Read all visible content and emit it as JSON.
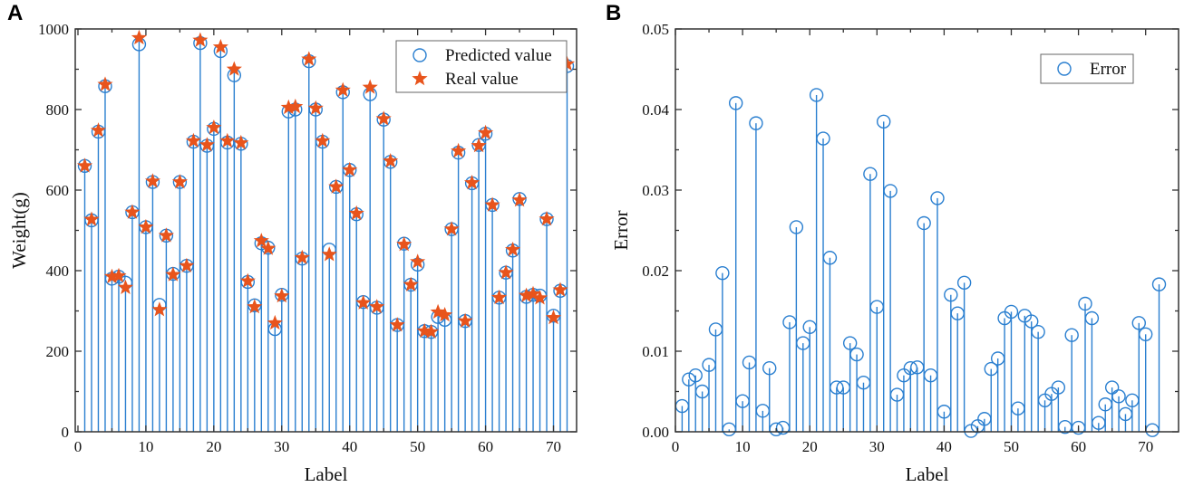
{
  "colors": {
    "stem": "#2a7fd0",
    "star": "#e8541c",
    "axis": "#333333"
  },
  "chart_data": [
    {
      "panel_label": "A",
      "type": "scatter",
      "subtype": "stem",
      "xlabel": "Label",
      "ylabel": "Weight(g)",
      "xlim": [
        -0.4,
        73.4
      ],
      "ylim": [
        0,
        1000
      ],
      "xticks": [
        0,
        10,
        20,
        30,
        40,
        50,
        60,
        70
      ],
      "yticks": [
        0,
        200,
        400,
        600,
        800,
        1000
      ],
      "legend_position": "top-right",
      "x": [
        1,
        2,
        3,
        4,
        5,
        6,
        7,
        8,
        9,
        10,
        11,
        12,
        13,
        14,
        15,
        16,
        17,
        18,
        19,
        20,
        21,
        22,
        23,
        24,
        25,
        26,
        27,
        28,
        29,
        30,
        31,
        32,
        33,
        34,
        35,
        36,
        37,
        38,
        39,
        40,
        41,
        42,
        43,
        44,
        45,
        46,
        47,
        48,
        49,
        50,
        51,
        52,
        53,
        54,
        55,
        56,
        57,
        58,
        59,
        60,
        61,
        62,
        63,
        64,
        65,
        66,
        67,
        68,
        69,
        70,
        71,
        72
      ],
      "series": [
        {
          "name": "Predicted value",
          "marker": "circle",
          "values": [
            660,
            525,
            745,
            858,
            380,
            385,
            370,
            545,
            962,
            508,
            620,
            315,
            487,
            392,
            620,
            412,
            720,
            965,
            710,
            752,
            945,
            718,
            885,
            715,
            372,
            314,
            468,
            457,
            255,
            340,
            795,
            800,
            430,
            920,
            800,
            720,
            452,
            608,
            843,
            650,
            540,
            322,
            838,
            308,
            775,
            670,
            265,
            467,
            365,
            415,
            250,
            248,
            285,
            278,
            503,
            693,
            275,
            617,
            712,
            740,
            563,
            333,
            395,
            450,
            578,
            335,
            340,
            338,
            528,
            288,
            350,
            908
          ]
        },
        {
          "name": "Real value",
          "marker": "star",
          "values": [
            660,
            527,
            748,
            862,
            385,
            387,
            358,
            545,
            978,
            508,
            622,
            303,
            487,
            390,
            620,
            412,
            722,
            972,
            712,
            755,
            955,
            722,
            900,
            717,
            374,
            310,
            474,
            455,
            270,
            337,
            805,
            807,
            432,
            925,
            803,
            722,
            440,
            608,
            848,
            650,
            542,
            320,
            855,
            310,
            777,
            672,
            265,
            465,
            365,
            422,
            250,
            248,
            297,
            290,
            503,
            697,
            275,
            618,
            710,
            742,
            563,
            333,
            395,
            452,
            575,
            338,
            342,
            332,
            528,
            283,
            352,
            913
          ]
        }
      ]
    },
    {
      "panel_label": "B",
      "type": "scatter",
      "subtype": "stem",
      "xlabel": "Label",
      "ylabel": "Error",
      "xlim": [
        0,
        74.9
      ],
      "ylim": [
        0,
        0.05
      ],
      "xticks": [
        0,
        10,
        20,
        30,
        40,
        50,
        60,
        70
      ],
      "yticks": [
        "0.00",
        "0.01",
        "0.02",
        "0.03",
        "0.04",
        "0.05"
      ],
      "legend_position": "top-right",
      "x": [
        1,
        2,
        3,
        4,
        5,
        6,
        7,
        8,
        9,
        10,
        11,
        12,
        13,
        14,
        15,
        16,
        17,
        18,
        19,
        20,
        21,
        22,
        23,
        24,
        25,
        26,
        27,
        28,
        29,
        30,
        31,
        32,
        33,
        34,
        35,
        36,
        37,
        38,
        39,
        40,
        41,
        42,
        43,
        44,
        45,
        46,
        47,
        48,
        49,
        50,
        51,
        52,
        53,
        54,
        55,
        56,
        57,
        58,
        59,
        60,
        61,
        62,
        63,
        64,
        65,
        66,
        67,
        68,
        69,
        70,
        71,
        72
      ],
      "series": [
        {
          "name": "Error",
          "marker": "circle",
          "values": [
            0.0032,
            0.0065,
            0.007,
            0.005,
            0.0083,
            0.0127,
            0.0197,
            0.0003,
            0.0408,
            0.0038,
            0.0086,
            0.0383,
            0.0026,
            0.0079,
            0.0003,
            0.0005,
            0.0136,
            0.0254,
            0.011,
            0.013,
            0.0418,
            0.0364,
            0.0216,
            0.0055,
            0.0055,
            0.011,
            0.0096,
            0.0061,
            0.032,
            0.0155,
            0.0385,
            0.0299,
            0.0046,
            0.007,
            0.0079,
            0.008,
            0.0259,
            0.007,
            0.029,
            0.0025,
            0.017,
            0.0147,
            0.0185,
            0.0001,
            0.0007,
            0.0016,
            0.0078,
            0.0091,
            0.0141,
            0.0149,
            0.0029,
            0.0144,
            0.0137,
            0.0124,
            0.0039,
            0.0047,
            0.0055,
            0.0006,
            0.012,
            0.0005,
            0.0159,
            0.0141,
            0.0011,
            0.0034,
            0.0055,
            0.0044,
            0.0022,
            0.0039,
            0.0135,
            0.0121,
            0.0002,
            0.0183
          ]
        }
      ]
    }
  ]
}
